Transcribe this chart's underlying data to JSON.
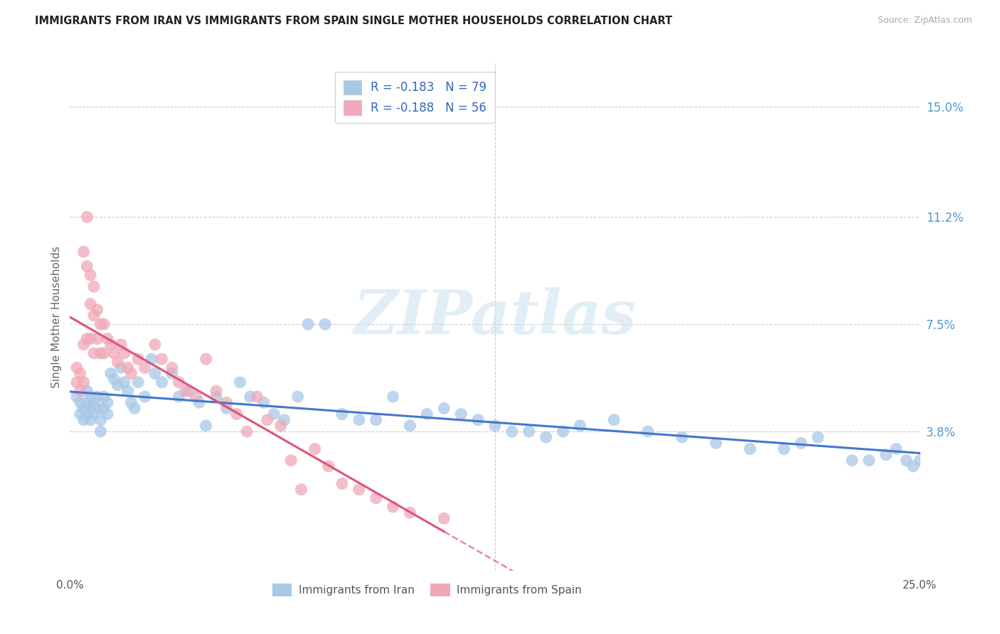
{
  "title": "IMMIGRANTS FROM IRAN VS IMMIGRANTS FROM SPAIN SINGLE MOTHER HOUSEHOLDS CORRELATION CHART",
  "source": "Source: ZipAtlas.com",
  "ylabel": "Single Mother Households",
  "xlim": [
    0.0,
    0.25
  ],
  "ylim": [
    -0.01,
    0.165
  ],
  "ytick_vals": [
    0.038,
    0.075,
    0.112,
    0.15
  ],
  "ytick_labels": [
    "3.8%",
    "7.5%",
    "11.2%",
    "15.0%"
  ],
  "color_iran": "#a8c8e8",
  "color_spain": "#f0a8b8",
  "trendline_iran": "#4477cc",
  "trendline_spain": "#dd5577",
  "legend_iran_R": "-0.183",
  "legend_iran_N": "79",
  "legend_spain_R": "-0.188",
  "legend_spain_N": "56",
  "watermark": "ZIPatlas",
  "iran_N": 79,
  "spain_N": 56,
  "iran_R": -0.183,
  "spain_R": -0.188,
  "iran_x": [
    0.002,
    0.003,
    0.003,
    0.004,
    0.004,
    0.005,
    0.005,
    0.005,
    0.006,
    0.006,
    0.006,
    0.007,
    0.007,
    0.008,
    0.008,
    0.009,
    0.009,
    0.01,
    0.01,
    0.011,
    0.011,
    0.012,
    0.013,
    0.014,
    0.015,
    0.016,
    0.017,
    0.018,
    0.019,
    0.02,
    0.022,
    0.024,
    0.025,
    0.027,
    0.03,
    0.032,
    0.035,
    0.038,
    0.04,
    0.043,
    0.046,
    0.05,
    0.053,
    0.057,
    0.06,
    0.063,
    0.067,
    0.07,
    0.075,
    0.08,
    0.085,
    0.09,
    0.095,
    0.1,
    0.105,
    0.11,
    0.115,
    0.12,
    0.125,
    0.13,
    0.135,
    0.14,
    0.145,
    0.15,
    0.16,
    0.17,
    0.18,
    0.19,
    0.2,
    0.21,
    0.215,
    0.22,
    0.23,
    0.235,
    0.24,
    0.243,
    0.246,
    0.248,
    0.25
  ],
  "iran_y": [
    0.05,
    0.048,
    0.044,
    0.046,
    0.042,
    0.052,
    0.048,
    0.044,
    0.05,
    0.046,
    0.042,
    0.048,
    0.044,
    0.05,
    0.046,
    0.042,
    0.038,
    0.05,
    0.046,
    0.048,
    0.044,
    0.058,
    0.056,
    0.054,
    0.06,
    0.055,
    0.052,
    0.048,
    0.046,
    0.055,
    0.05,
    0.063,
    0.058,
    0.055,
    0.058,
    0.05,
    0.052,
    0.048,
    0.04,
    0.05,
    0.046,
    0.055,
    0.05,
    0.048,
    0.044,
    0.042,
    0.05,
    0.075,
    0.075,
    0.044,
    0.042,
    0.042,
    0.05,
    0.04,
    0.044,
    0.046,
    0.044,
    0.042,
    0.04,
    0.038,
    0.038,
    0.036,
    0.038,
    0.04,
    0.042,
    0.038,
    0.036,
    0.034,
    0.032,
    0.032,
    0.034,
    0.036,
    0.028,
    0.028,
    0.03,
    0.032,
    0.028,
    0.026,
    0.028
  ],
  "spain_x": [
    0.002,
    0.002,
    0.003,
    0.003,
    0.004,
    0.004,
    0.004,
    0.005,
    0.005,
    0.005,
    0.006,
    0.006,
    0.006,
    0.007,
    0.007,
    0.007,
    0.008,
    0.008,
    0.009,
    0.009,
    0.01,
    0.01,
    0.011,
    0.012,
    0.013,
    0.014,
    0.015,
    0.016,
    0.017,
    0.018,
    0.02,
    0.022,
    0.025,
    0.027,
    0.03,
    0.032,
    0.034,
    0.037,
    0.04,
    0.043,
    0.046,
    0.049,
    0.052,
    0.055,
    0.058,
    0.062,
    0.065,
    0.068,
    0.072,
    0.076,
    0.08,
    0.085,
    0.09,
    0.095,
    0.1,
    0.11
  ],
  "spain_y": [
    0.06,
    0.055,
    0.058,
    0.052,
    0.1,
    0.068,
    0.055,
    0.112,
    0.095,
    0.07,
    0.092,
    0.082,
    0.07,
    0.088,
    0.078,
    0.065,
    0.08,
    0.07,
    0.075,
    0.065,
    0.075,
    0.065,
    0.07,
    0.068,
    0.065,
    0.062,
    0.068,
    0.065,
    0.06,
    0.058,
    0.063,
    0.06,
    0.068,
    0.063,
    0.06,
    0.055,
    0.052,
    0.05,
    0.063,
    0.052,
    0.048,
    0.044,
    0.038,
    0.05,
    0.042,
    0.04,
    0.028,
    0.018,
    0.032,
    0.026,
    0.02,
    0.018,
    0.015,
    0.012,
    0.01,
    0.008
  ]
}
